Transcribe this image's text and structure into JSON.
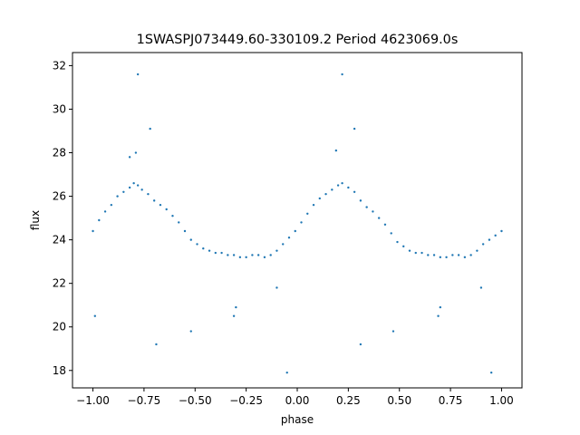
{
  "chart_data": {
    "type": "scatter",
    "title": "1SWASPJ073449.60-330109.2 Period 4623069.0s",
    "xlabel": "phase",
    "ylabel": "flux",
    "xlim": [
      -1.1,
      1.1
    ],
    "ylim": [
      17.2,
      32.6
    ],
    "x_ticks": [
      "−1.00",
      "−0.75",
      "−0.50",
      "−0.25",
      "0.00",
      "0.25",
      "0.50",
      "0.75",
      "1.00"
    ],
    "x_tick_values": [
      -1.0,
      -0.75,
      -0.5,
      -0.25,
      0.0,
      0.25,
      0.5,
      0.75,
      1.0
    ],
    "y_ticks": [
      "18",
      "20",
      "22",
      "24",
      "26",
      "28",
      "30",
      "32"
    ],
    "y_tick_values": [
      18,
      20,
      22,
      24,
      26,
      28,
      30,
      32
    ],
    "grid": false,
    "legend": "none",
    "marker_color": "#1f77b4",
    "series": [
      {
        "points": [
          [
            -1.0,
            24.4
          ],
          [
            -0.97,
            24.9
          ],
          [
            -0.94,
            25.3
          ],
          [
            -0.91,
            25.6
          ],
          [
            -0.88,
            26.0
          ],
          [
            -0.85,
            26.2
          ],
          [
            -0.82,
            26.4
          ],
          [
            -0.8,
            26.6
          ],
          [
            -0.78,
            26.5
          ],
          [
            -0.76,
            26.3
          ],
          [
            -0.73,
            26.1
          ],
          [
            -0.7,
            25.8
          ],
          [
            -0.67,
            25.6
          ],
          [
            -0.64,
            25.4
          ],
          [
            -0.61,
            25.1
          ],
          [
            -0.58,
            24.8
          ],
          [
            -0.55,
            24.4
          ],
          [
            -0.52,
            24.0
          ],
          [
            -0.49,
            23.8
          ],
          [
            -0.46,
            23.6
          ],
          [
            -0.43,
            23.5
          ],
          [
            -0.4,
            23.4
          ],
          [
            -0.37,
            23.4
          ],
          [
            -0.34,
            23.3
          ],
          [
            -0.31,
            23.3
          ],
          [
            -0.28,
            23.2
          ],
          [
            -0.25,
            23.2
          ],
          [
            -0.22,
            23.3
          ],
          [
            -0.19,
            23.3
          ],
          [
            -0.16,
            23.2
          ],
          [
            -0.13,
            23.3
          ],
          [
            -0.1,
            23.5
          ],
          [
            -0.07,
            23.8
          ],
          [
            -0.04,
            24.1
          ],
          [
            -0.01,
            24.4
          ],
          [
            0.02,
            24.8
          ],
          [
            0.05,
            25.2
          ],
          [
            0.08,
            25.6
          ],
          [
            0.11,
            25.9
          ],
          [
            0.14,
            26.1
          ],
          [
            0.17,
            26.3
          ],
          [
            0.2,
            26.5
          ],
          [
            0.22,
            26.6
          ],
          [
            0.25,
            26.4
          ],
          [
            0.28,
            26.2
          ],
          [
            0.31,
            25.8
          ],
          [
            0.34,
            25.5
          ],
          [
            0.37,
            25.3
          ],
          [
            0.4,
            25.0
          ],
          [
            0.43,
            24.7
          ],
          [
            0.46,
            24.3
          ],
          [
            0.49,
            23.9
          ],
          [
            0.52,
            23.7
          ],
          [
            0.55,
            23.5
          ],
          [
            0.58,
            23.4
          ],
          [
            0.61,
            23.4
          ],
          [
            0.64,
            23.3
          ],
          [
            0.67,
            23.3
          ],
          [
            0.7,
            23.2
          ],
          [
            0.73,
            23.2
          ],
          [
            0.76,
            23.3
          ],
          [
            0.79,
            23.3
          ],
          [
            0.82,
            23.2
          ],
          [
            0.85,
            23.3
          ],
          [
            0.88,
            23.5
          ],
          [
            0.91,
            23.8
          ],
          [
            0.94,
            24.0
          ],
          [
            0.97,
            24.2
          ],
          [
            1.0,
            24.4
          ],
          [
            -0.82,
            27.8
          ],
          [
            -0.79,
            28.0
          ],
          [
            -0.72,
            29.1
          ],
          [
            -0.78,
            31.6
          ],
          [
            0.19,
            28.1
          ],
          [
            0.22,
            31.6
          ],
          [
            0.28,
            29.1
          ],
          [
            -0.31,
            20.5
          ],
          [
            -0.3,
            20.9
          ],
          [
            0.69,
            20.5
          ],
          [
            0.7,
            20.9
          ],
          [
            -0.69,
            19.2
          ],
          [
            0.31,
            19.2
          ],
          [
            -0.05,
            17.9
          ],
          [
            0.95,
            17.9
          ],
          [
            -0.99,
            20.5
          ],
          [
            -0.52,
            19.8
          ],
          [
            0.47,
            19.8
          ],
          [
            -0.1,
            21.8
          ],
          [
            0.9,
            21.8
          ]
        ]
      }
    ]
  }
}
